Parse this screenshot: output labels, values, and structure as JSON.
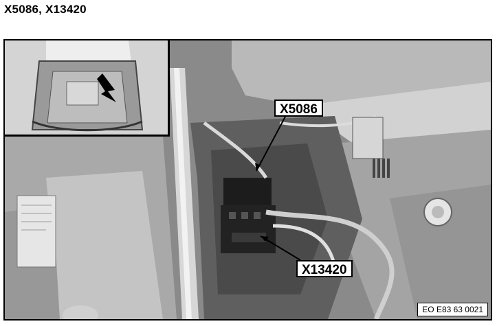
{
  "title": "X5086, X13420",
  "callouts": {
    "x5086": "X5086",
    "x13420": "X13420"
  },
  "reference_code": "EO E83 63 0021",
  "colors": {
    "frame": "#000000",
    "label_background": "#ffffff",
    "photo_tone": "#8e8e8e"
  }
}
